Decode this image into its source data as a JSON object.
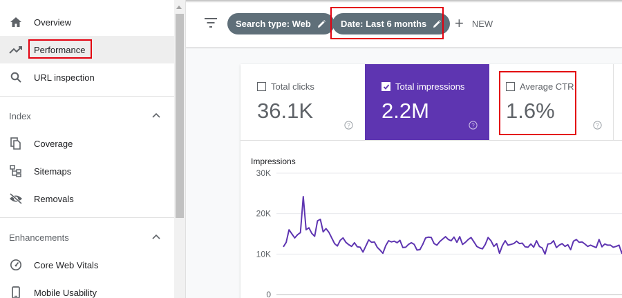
{
  "sidebar": {
    "items": [
      {
        "label": "Overview",
        "icon": "home-icon",
        "active": false
      },
      {
        "label": "Performance",
        "icon": "trending-up-icon",
        "active": true
      },
      {
        "label": "URL inspection",
        "icon": "search-icon",
        "active": false
      }
    ],
    "sections": [
      {
        "title": "Index",
        "items": [
          {
            "label": "Coverage",
            "icon": "file-copy-icon"
          },
          {
            "label": "Sitemaps",
            "icon": "sitemap-icon"
          },
          {
            "label": "Removals",
            "icon": "eye-off-icon"
          }
        ]
      },
      {
        "title": "Enhancements",
        "items": [
          {
            "label": "Core Web Vitals",
            "icon": "gauge-icon"
          },
          {
            "label": "Mobile Usability",
            "icon": "phone-icon"
          }
        ]
      }
    ]
  },
  "toolbar": {
    "chips": [
      {
        "label": "Search type: Web"
      },
      {
        "label": "Date: Last 6 months"
      }
    ],
    "new_label": "NEW"
  },
  "metrics": [
    {
      "label": "Total clicks",
      "value": "36.1K",
      "checked": false
    },
    {
      "label": "Total impressions",
      "value": "2.2M",
      "checked": true
    },
    {
      "label": "Average CTR",
      "value": "1.6%",
      "checked": false
    }
  ],
  "colors": {
    "accent": "#5e35b1",
    "chip": "#5f6f79",
    "highlight": "#e3000f",
    "active_bg": "#eeeeee"
  },
  "chart_data": {
    "type": "line",
    "ylabel": "Impressions",
    "yticks": [
      "30K",
      "20K",
      "10K",
      "0"
    ],
    "ylim": [
      0,
      30000
    ],
    "grid": true,
    "series": [
      {
        "color": "#5e35b1",
        "values": [
          11800,
          12900,
          16000,
          15000,
          14000,
          14800,
          15300,
          24200,
          16000,
          16500,
          15100,
          14400,
          18200,
          18600,
          15500,
          16300,
          15400,
          14000,
          12600,
          12000,
          13400,
          14000,
          12900,
          12300,
          11900,
          12800,
          11800,
          11700,
          10500,
          12000,
          13500,
          12900,
          13000,
          11700,
          11000,
          10200,
          12100,
          13300,
          13000,
          13200,
          12800,
          13400,
          11600,
          11700,
          12400,
          12800,
          12400,
          11000,
          11100,
          12400,
          14000,
          14200,
          14100,
          12600,
          12200,
          13100,
          13700,
          14300,
          13600,
          13300,
          14200,
          12900,
          14300,
          12400,
          12900,
          13600,
          14100,
          13000,
          11900,
          11500,
          11300,
          12400,
          14100,
          13300,
          11900,
          12600,
          10200,
          12100,
          13300,
          12200,
          12400,
          12600,
          13200,
          12600,
          12700,
          11800,
          11700,
          12500,
          11700,
          13300,
          11900,
          11500,
          10000,
          12500,
          12600,
          13300,
          11600,
          12200,
          12600,
          11900,
          12300,
          11100,
          13200,
          13600,
          12900,
          13000,
          12500,
          11900,
          12200,
          11900,
          11600,
          13600,
          11800,
          12500,
          12200,
          12200,
          11700,
          11900,
          12200,
          10200,
          12800,
          12400
        ]
      }
    ]
  }
}
